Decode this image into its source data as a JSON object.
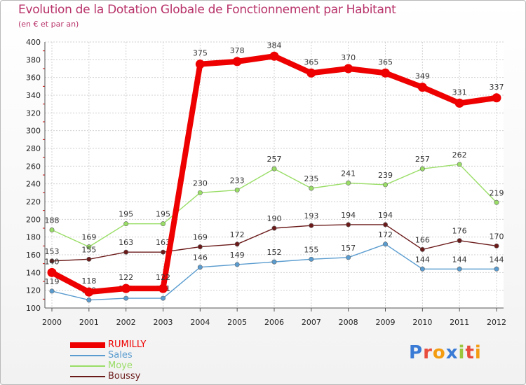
{
  "title": "Evolution de la Dotation Globale de Fonctionnement par Habitant",
  "subtitle": "(en € et par an)",
  "logo": "Proxiti",
  "chart_data": {
    "type": "line",
    "x": [
      "2000",
      "2001",
      "2002",
      "2003",
      "2004",
      "2005",
      "2006",
      "2007",
      "2008",
      "2009",
      "2010",
      "2011",
      "2012"
    ],
    "ylim": [
      100,
      400
    ],
    "yticks": [
      100,
      120,
      140,
      160,
      180,
      200,
      220,
      240,
      260,
      280,
      300,
      320,
      340,
      360,
      380,
      400
    ],
    "grid": true,
    "legend": "bottom-left",
    "series": [
      {
        "name": "RUMILLY",
        "color": "#ee0000",
        "values": [
          140,
          118,
          122,
          122,
          375,
          378,
          384,
          365,
          370,
          365,
          349,
          331,
          337
        ]
      },
      {
        "name": "Sales",
        "color": "#5a9ccf",
        "values": [
          119,
          109,
          111,
          111,
          146,
          149,
          152,
          155,
          157,
          172,
          144,
          144,
          144
        ]
      },
      {
        "name": "Moye",
        "color": "#99dd66",
        "values": [
          188,
          169,
          195,
          195,
          230,
          233,
          257,
          235,
          241,
          239,
          257,
          262,
          219
        ]
      },
      {
        "name": "Boussy",
        "color": "#6b1a1a",
        "values": [
          153,
          155,
          163,
          163,
          169,
          172,
          190,
          193,
          194,
          194,
          166,
          176,
          170
        ]
      }
    ]
  }
}
